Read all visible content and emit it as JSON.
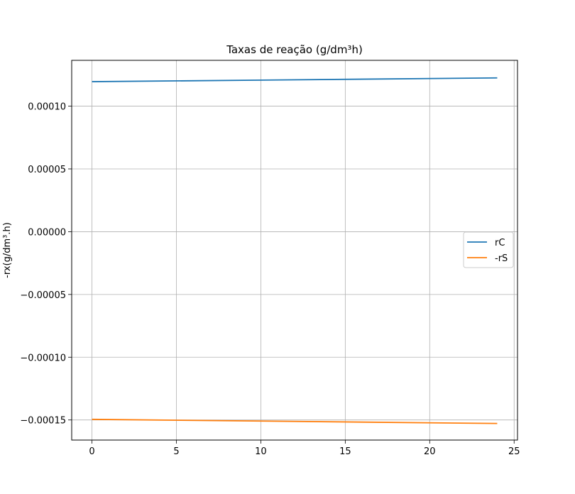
{
  "chart_data": {
    "type": "line",
    "title": "Taxas de reação (g/dm³h)",
    "xlabel": "",
    "ylabel": "-rx(g/dm³.h)",
    "xlim": [
      -1.2,
      25.2
    ],
    "ylim": [
      -0.000166,
      0.0001365
    ],
    "xticks": [
      0,
      5,
      10,
      15,
      20,
      25
    ],
    "yticks": [
      -0.00015,
      -0.0001,
      -5e-05,
      0,
      5e-05,
      0.0001
    ],
    "ytick_labels": [
      "−0.00015",
      "−0.00010",
      "−0.00005",
      "0.00000",
      "0.00005",
      "0.00010"
    ],
    "grid": true,
    "legend_position": "center-right",
    "series": [
      {
        "name": "rC",
        "color": "#1f77b4",
        "x": [
          0,
          24
        ],
        "y": [
          0.0001195,
          0.0001225
        ]
      },
      {
        "name": "-rS",
        "color": "#ff7f0e",
        "x": [
          0,
          24
        ],
        "y": [
          -0.0001495,
          -0.0001528
        ]
      }
    ]
  }
}
